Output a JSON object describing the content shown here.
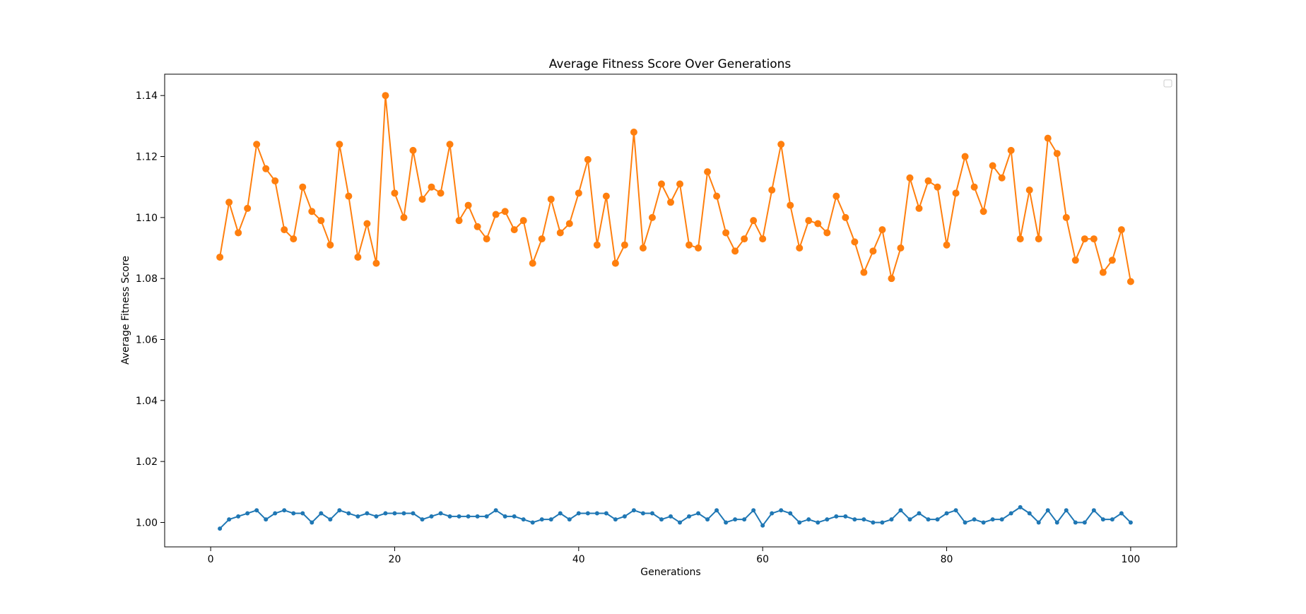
{
  "chart_data": {
    "type": "line",
    "title": "Average Fitness Score Over Generations",
    "xlabel": "Generations",
    "ylabel": "Average Fitness Score",
    "xlim": [
      -5,
      105
    ],
    "ylim": [
      0.992,
      1.147
    ],
    "xticks": [
      0,
      20,
      40,
      60,
      80,
      100
    ],
    "yticks": [
      1.0,
      1.02,
      1.04,
      1.06,
      1.08,
      1.1,
      1.12,
      1.14
    ],
    "ytick_labels": [
      "1.00",
      "1.02",
      "1.04",
      "1.06",
      "1.08",
      "1.10",
      "1.12",
      "1.14"
    ],
    "xtick_labels": [
      "0",
      "20",
      "40",
      "60",
      "80",
      "100"
    ],
    "grid": false,
    "legend": "upper right (empty box)",
    "x": [
      1,
      2,
      3,
      4,
      5,
      6,
      7,
      8,
      9,
      10,
      11,
      12,
      13,
      14,
      15,
      16,
      17,
      18,
      19,
      20,
      21,
      22,
      23,
      24,
      25,
      26,
      27,
      28,
      29,
      30,
      31,
      32,
      33,
      34,
      35,
      36,
      37,
      38,
      39,
      40,
      41,
      42,
      43,
      44,
      45,
      46,
      47,
      48,
      49,
      50,
      51,
      52,
      53,
      54,
      55,
      56,
      57,
      58,
      59,
      60,
      61,
      62,
      63,
      64,
      65,
      66,
      67,
      68,
      69,
      70,
      71,
      72,
      73,
      74,
      75,
      76,
      77,
      78,
      79,
      80,
      81,
      82,
      83,
      84,
      85,
      86,
      87,
      88,
      89,
      90,
      91,
      92,
      93,
      94,
      95,
      96,
      97,
      98,
      99,
      100
    ],
    "series": [
      {
        "color": "#1f77b4",
        "marker": "small-dot",
        "values": [
          0.998,
          1.001,
          1.002,
          1.003,
          1.004,
          1.001,
          1.003,
          1.004,
          1.003,
          1.003,
          1.0,
          1.003,
          1.001,
          1.004,
          1.003,
          1.002,
          1.003,
          1.002,
          1.003,
          1.003,
          1.003,
          1.003,
          1.001,
          1.002,
          1.003,
          1.002,
          1.002,
          1.002,
          1.002,
          1.002,
          1.004,
          1.002,
          1.002,
          1.001,
          1.0,
          1.001,
          1.001,
          1.003,
          1.001,
          1.003,
          1.003,
          1.003,
          1.003,
          1.001,
          1.002,
          1.004,
          1.003,
          1.003,
          1.001,
          1.002,
          1.0,
          1.002,
          1.003,
          1.001,
          1.004,
          1.0,
          1.001,
          1.001,
          1.004,
          0.999,
          1.003,
          1.004,
          1.003,
          1.0,
          1.001,
          1.0,
          1.001,
          1.002,
          1.002,
          1.001,
          1.001,
          1.0,
          1.0,
          1.001,
          1.004,
          1.001,
          1.003,
          1.001,
          1.001,
          1.003,
          1.004,
          1.0,
          1.001,
          1.0,
          1.001,
          1.001,
          1.003,
          1.005,
          1.003,
          1.0,
          1.004,
          1.0,
          1.004,
          1.0,
          1.0,
          1.004,
          1.001,
          1.001,
          1.003,
          1.0
        ]
      },
      {
        "color": "#ff7f0e",
        "marker": "circle",
        "values": [
          1.087,
          1.105,
          1.095,
          1.103,
          1.124,
          1.116,
          1.112,
          1.096,
          1.093,
          1.11,
          1.102,
          1.099,
          1.091,
          1.124,
          1.107,
          1.087,
          1.098,
          1.085,
          1.14,
          1.108,
          1.1,
          1.122,
          1.106,
          1.11,
          1.108,
          1.124,
          1.099,
          1.104,
          1.097,
          1.093,
          1.101,
          1.102,
          1.096,
          1.099,
          1.085,
          1.093,
          1.106,
          1.095,
          1.098,
          1.108,
          1.119,
          1.091,
          1.107,
          1.085,
          1.091,
          1.128,
          1.09,
          1.1,
          1.111,
          1.105,
          1.111,
          1.091,
          1.09,
          1.115,
          1.107,
          1.095,
          1.089,
          1.093,
          1.099,
          1.093,
          1.109,
          1.124,
          1.104,
          1.09,
          1.099,
          1.098,
          1.095,
          1.107,
          1.1,
          1.092,
          1.082,
          1.089,
          1.096,
          1.08,
          1.09,
          1.113,
          1.103,
          1.112,
          1.11,
          1.091,
          1.108,
          1.12,
          1.11,
          1.102,
          1.117,
          1.113,
          1.122,
          1.093,
          1.109,
          1.093,
          1.126,
          1.121,
          1.1,
          1.086,
          1.093,
          1.093,
          1.082,
          1.086,
          1.096,
          1.079
        ]
      }
    ]
  }
}
